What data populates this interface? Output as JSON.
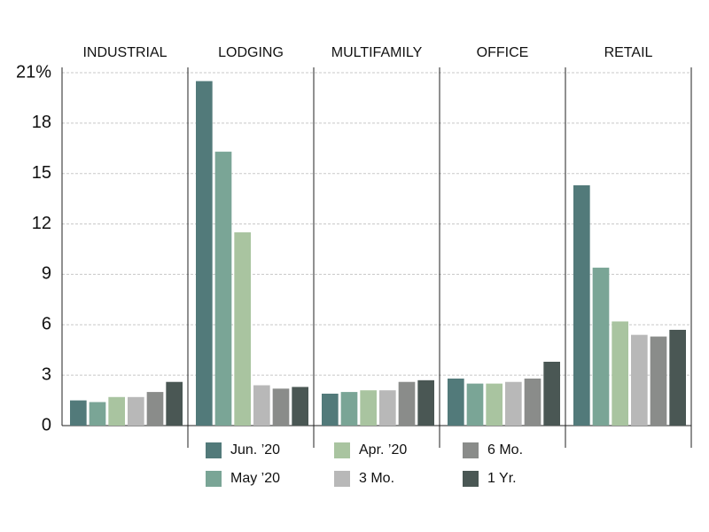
{
  "chart_data": {
    "type": "bar",
    "categories": [
      "INDUSTRIAL",
      "LODGING",
      "MULTIFAMILY",
      "OFFICE",
      "RETAIL"
    ],
    "series": [
      {
        "name": "Jun. ’20",
        "color": "#527a7a",
        "values": [
          1.5,
          20.5,
          1.9,
          2.8,
          14.3
        ]
      },
      {
        "name": "May ’20",
        "color": "#7aa596",
        "values": [
          1.4,
          16.3,
          2.0,
          2.5,
          9.4
        ]
      },
      {
        "name": "Apr. ’20",
        "color": "#a9c4a0",
        "values": [
          1.7,
          11.5,
          2.1,
          2.5,
          6.2
        ]
      },
      {
        "name": "3 Mo.",
        "color": "#b8b8b8",
        "values": [
          1.7,
          2.4,
          2.1,
          2.6,
          5.4
        ]
      },
      {
        "name": "6 Mo.",
        "color": "#8a8c8a",
        "values": [
          2.0,
          2.2,
          2.6,
          2.8,
          5.3
        ]
      },
      {
        "name": "1 Yr.",
        "color": "#4a5754",
        "values": [
          2.6,
          2.3,
          2.7,
          3.8,
          5.7
        ]
      }
    ],
    "ylim": [
      0,
      21
    ],
    "yticks": [
      0,
      3,
      6,
      9,
      12,
      15,
      18,
      {
        "value": 21,
        "label": "21%"
      }
    ],
    "grid": true
  }
}
